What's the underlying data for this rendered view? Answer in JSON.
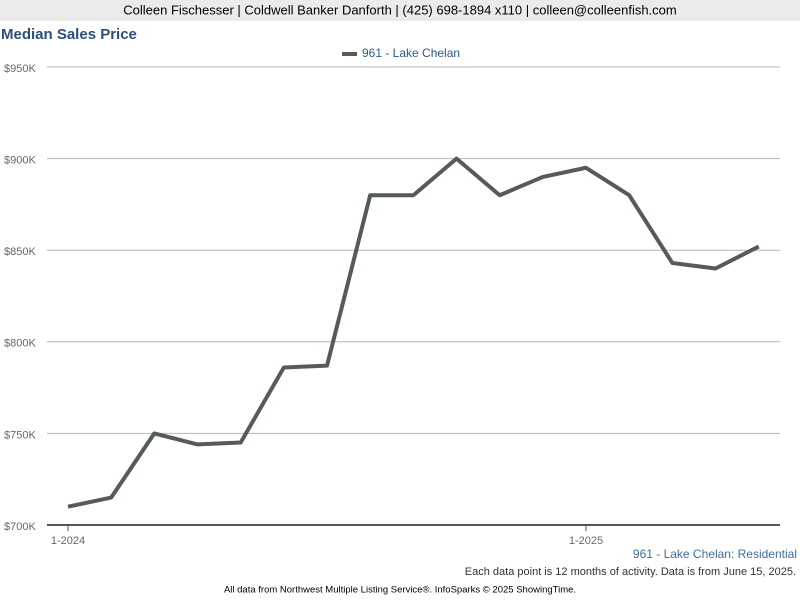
{
  "header": {
    "contact": "Colleen Fischesser | Coldwell Banker Danforth | (425) 698-1894 x110 | colleen@colleenfish.com"
  },
  "chart_data": {
    "type": "line",
    "title": "Median Sales Price",
    "categories": [
      "1-2024",
      null,
      null,
      null,
      null,
      null,
      null,
      null,
      null,
      null,
      null,
      null,
      "1-2025",
      null,
      null,
      null,
      null
    ],
    "series": [
      {
        "name": "961 - Lake Chelan",
        "color": "#555b5b",
        "values": [
          710000,
          715000,
          750000,
          744000,
          745000,
          786000,
          787000,
          880000,
          880000,
          900000,
          880000,
          890000,
          895000,
          880000,
          843000,
          840000,
          852000
        ]
      }
    ],
    "ylim": [
      700000,
      950000
    ],
    "yticks": [
      {
        "value": 700000,
        "label": "$700K"
      },
      {
        "value": 750000,
        "label": "$750K"
      },
      {
        "value": 800000,
        "label": "$800K"
      },
      {
        "value": 850000,
        "label": "$850K"
      },
      {
        "value": 900000,
        "label": "$900K"
      },
      {
        "value": 950000,
        "label": "$950K"
      }
    ],
    "grid": true,
    "legend": "top"
  },
  "footer": {
    "series_label": "961 - Lake Chelan: Residential",
    "note": "Each data point is 12 months of activity. Data is from June 15, 2025.",
    "source": "All data from Northwest Multiple Listing Service®. InfoSparks © 2025 ShowingTime."
  }
}
